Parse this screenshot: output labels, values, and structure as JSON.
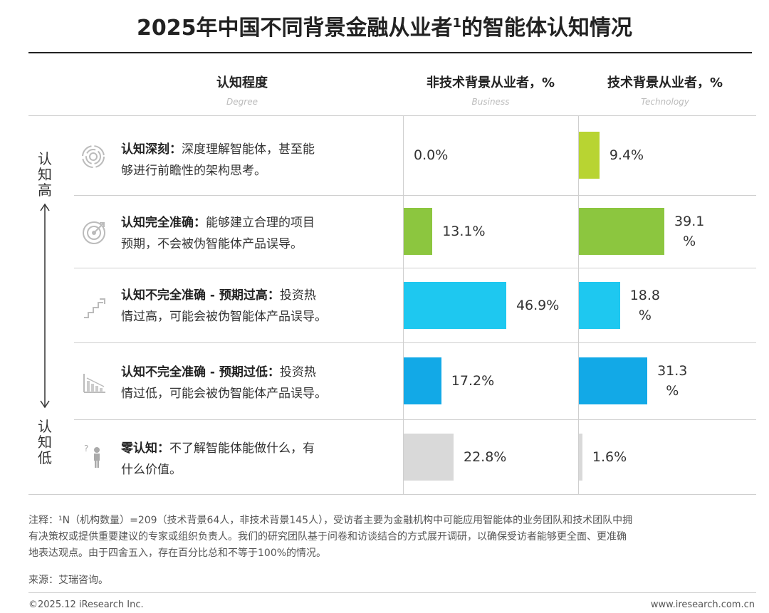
{
  "title_main": "2025年中国不同背景金融从业者",
  "title_sup": "1",
  "title_tail": "的智能体认知情况",
  "headers": {
    "degree": "认知程度",
    "degree_en": "Degree",
    "business": "非技术背景从业者，%",
    "business_en": "Business",
    "technology": "技术背景从业者，%",
    "technology_en": "Technology"
  },
  "axis": {
    "high": [
      "认",
      "知",
      "高"
    ],
    "low": [
      "认",
      "知",
      "低"
    ]
  },
  "chart_data": {
    "type": "bar",
    "orientation": "horizontal",
    "title": "2025年中国不同背景金融从业者1的智能体认知情况",
    "categories": [
      "认知深刻",
      "认知完全准确",
      "认知不完全准确 - 预期过高",
      "认知不完全准确 - 预期过低",
      "零认知"
    ],
    "series": [
      {
        "name": "非技术背景从业者，%",
        "values": [
          0.0,
          13.1,
          46.9,
          17.2,
          22.8
        ],
        "labels": [
          "0.0%",
          "13.1%",
          "46.9%",
          "17.2%",
          "22.8%"
        ]
      },
      {
        "name": "技术背景从业者，%",
        "values": [
          9.4,
          39.1,
          18.8,
          31.3,
          1.6
        ],
        "labels": [
          "9.4%",
          "39.1\n%",
          "18.8\n%",
          "31.3\n%",
          "1.6%"
        ]
      }
    ],
    "colors": [
      "#d9d9d9",
      "#8cc63f",
      "#1ec8f0",
      "#12a9e7",
      "#d9d9d9"
    ],
    "tech_colors": [
      "#b8d432",
      "#8cc63f",
      "#1ec8f0",
      "#12a9e7",
      "#d9d9d9"
    ]
  },
  "rows": [
    {
      "bold": "认知深刻：",
      "text": "深度理解智能体，甚至能够进行前瞻性的架构思考。",
      "line1": "深度理解智能体，甚至能",
      "line2": "够进行前瞻性的架构思考。",
      "icon": "swirl-icon"
    },
    {
      "bold": "认知完全准确：",
      "line1": "能够建立合理的项目",
      "line2": "预期，不会被伪智能体产品误导。",
      "icon": "target-icon"
    },
    {
      "bold": "认知不完全准确 - 预期过高：",
      "line1": "投资热",
      "line2": "情过高，可能会被伪智能体产品误导。",
      "icon": "stairs-up-icon"
    },
    {
      "bold": "认知不完全准确 - 预期过低：",
      "line1": "投资热",
      "line2": "情过低，可能会被伪智能体产品误导。",
      "icon": "chart-down-icon"
    },
    {
      "bold": "零认知：",
      "line1": "不了解智能体能做什么，有",
      "line2": "什么价值。",
      "icon": "question-person-icon"
    }
  ],
  "notes": {
    "line1": "注释：¹N（机构数量）=209（技术背景64人，非技术背景145人），受访者主要为金融机构中可能应用智能体的业务团队和技术团队中拥",
    "line2": "有决策权或提供重要建议的专家或组织负责人。我们的研究团队基于问卷和访谈结合的方式展开调研，以确保受访者能够更全面、更准确",
    "line3": "地表达观点。由于四舍五入，存在百分比总和不等于100%的情况。",
    "source": "来源：艾瑞咨询。"
  },
  "footer": {
    "copyright": "©2025.12 iResearch Inc.",
    "website": "www.iresearch.com.cn"
  }
}
